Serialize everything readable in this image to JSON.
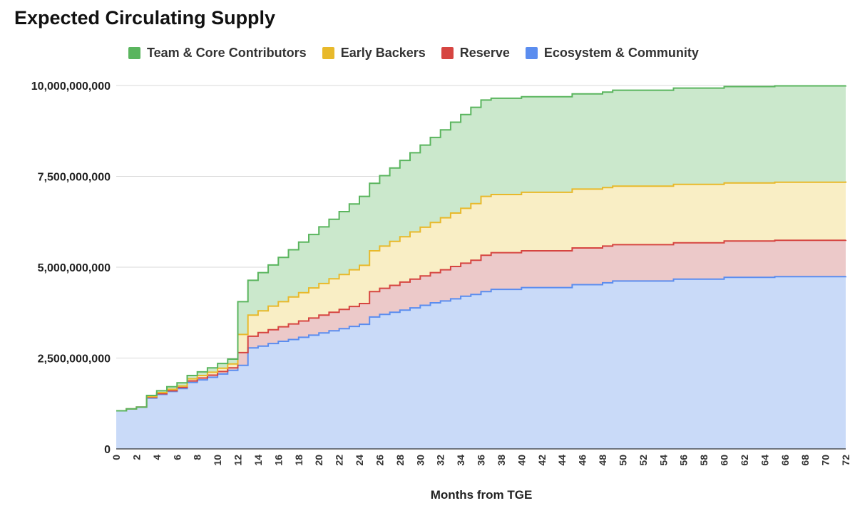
{
  "chart_data": {
    "type": "area",
    "stacked": true,
    "step": true,
    "title": "Expected Circulating Supply",
    "xlabel": "Months from TGE",
    "ylabel": "",
    "ylim": [
      0,
      10000000000
    ],
    "xlim": [
      0,
      72
    ],
    "yticks": [
      0,
      2500000000,
      5000000000,
      7500000000,
      10000000000
    ],
    "ytick_labels": [
      "0",
      "2,500,000,000",
      "5,000,000,000",
      "7,500,000,000",
      "10,000,000,000"
    ],
    "xticks": [
      0,
      2,
      4,
      6,
      8,
      10,
      12,
      14,
      16,
      18,
      20,
      22,
      24,
      26,
      28,
      30,
      32,
      34,
      36,
      38,
      40,
      42,
      44,
      46,
      48,
      50,
      52,
      54,
      56,
      58,
      60,
      62,
      64,
      66,
      68,
      70,
      72
    ],
    "xtick_labels": [
      "0",
      "2",
      "4",
      "6",
      "8",
      "10",
      "12",
      "14",
      "16",
      "18",
      "20",
      "22",
      "24",
      "26",
      "28",
      "30",
      "32",
      "34",
      "36",
      "38",
      "40",
      "42",
      "44",
      "46",
      "48",
      "50",
      "52",
      "54",
      "56",
      "58",
      "60",
      "62",
      "64",
      "66",
      "68",
      "70",
      "72"
    ],
    "grid": true,
    "legend_position": "top",
    "series": [
      {
        "name": "Ecosystem & Community",
        "color": "#5b8def",
        "fill": "#c9daf8",
        "cumulative_points": [
          [
            0,
            1050000000
          ],
          [
            1,
            1100000000
          ],
          [
            2,
            1150000000
          ],
          [
            3,
            1400000000
          ],
          [
            4,
            1500000000
          ],
          [
            5,
            1580000000
          ],
          [
            6,
            1660000000
          ],
          [
            7,
            1830000000
          ],
          [
            8,
            1900000000
          ],
          [
            9,
            1970000000
          ],
          [
            10,
            2060000000
          ],
          [
            11,
            2160000000
          ],
          [
            12,
            2300000000
          ],
          [
            13,
            2780000000
          ],
          [
            14,
            2830000000
          ],
          [
            15,
            2900000000
          ],
          [
            16,
            2960000000
          ],
          [
            17,
            3010000000
          ],
          [
            18,
            3070000000
          ],
          [
            19,
            3130000000
          ],
          [
            20,
            3190000000
          ],
          [
            21,
            3250000000
          ],
          [
            22,
            3310000000
          ],
          [
            23,
            3370000000
          ],
          [
            24,
            3430000000
          ],
          [
            25,
            3630000000
          ],
          [
            26,
            3700000000
          ],
          [
            27,
            3760000000
          ],
          [
            28,
            3820000000
          ],
          [
            29,
            3880000000
          ],
          [
            30,
            3950000000
          ],
          [
            31,
            4020000000
          ],
          [
            32,
            4070000000
          ],
          [
            33,
            4130000000
          ],
          [
            34,
            4200000000
          ],
          [
            35,
            4250000000
          ],
          [
            36,
            4330000000
          ],
          [
            37,
            4390000000
          ],
          [
            40,
            4440000000
          ],
          [
            45,
            4520000000
          ],
          [
            48,
            4570000000
          ],
          [
            49,
            4620000000
          ],
          [
            55,
            4670000000
          ],
          [
            60,
            4720000000
          ],
          [
            65,
            4740000000
          ],
          [
            72,
            4750000000
          ]
        ]
      },
      {
        "name": "Reserve",
        "color": "#d64541",
        "fill": "#ecc9c9",
        "cumulative_points": [
          [
            0,
            1050000000
          ],
          [
            1,
            1100000000
          ],
          [
            2,
            1150000000
          ],
          [
            3,
            1420000000
          ],
          [
            4,
            1520000000
          ],
          [
            5,
            1600000000
          ],
          [
            6,
            1690000000
          ],
          [
            7,
            1870000000
          ],
          [
            8,
            1950000000
          ],
          [
            9,
            2030000000
          ],
          [
            10,
            2130000000
          ],
          [
            11,
            2230000000
          ],
          [
            12,
            2650000000
          ],
          [
            13,
            3100000000
          ],
          [
            14,
            3200000000
          ],
          [
            15,
            3280000000
          ],
          [
            16,
            3360000000
          ],
          [
            17,
            3440000000
          ],
          [
            18,
            3520000000
          ],
          [
            19,
            3600000000
          ],
          [
            20,
            3680000000
          ],
          [
            21,
            3760000000
          ],
          [
            22,
            3840000000
          ],
          [
            23,
            3920000000
          ],
          [
            24,
            4000000000
          ],
          [
            25,
            4330000000
          ],
          [
            26,
            4420000000
          ],
          [
            27,
            4500000000
          ],
          [
            28,
            4590000000
          ],
          [
            29,
            4670000000
          ],
          [
            30,
            4760000000
          ],
          [
            31,
            4850000000
          ],
          [
            32,
            4930000000
          ],
          [
            33,
            5020000000
          ],
          [
            34,
            5110000000
          ],
          [
            35,
            5190000000
          ],
          [
            36,
            5330000000
          ],
          [
            37,
            5400000000
          ],
          [
            40,
            5450000000
          ],
          [
            45,
            5530000000
          ],
          [
            48,
            5580000000
          ],
          [
            49,
            5620000000
          ],
          [
            55,
            5670000000
          ],
          [
            60,
            5720000000
          ],
          [
            65,
            5740000000
          ],
          [
            72,
            5750000000
          ]
        ]
      },
      {
        "name": "Early Backers",
        "color": "#e8b92b",
        "fill": "#f9eec5",
        "cumulative_points": [
          [
            0,
            1050000000
          ],
          [
            1,
            1100000000
          ],
          [
            2,
            1150000000
          ],
          [
            3,
            1440000000
          ],
          [
            4,
            1550000000
          ],
          [
            5,
            1640000000
          ],
          [
            6,
            1730000000
          ],
          [
            7,
            1930000000
          ],
          [
            8,
            2020000000
          ],
          [
            9,
            2110000000
          ],
          [
            10,
            2220000000
          ],
          [
            11,
            2340000000
          ],
          [
            12,
            3150000000
          ],
          [
            13,
            3680000000
          ],
          [
            14,
            3800000000
          ],
          [
            15,
            3930000000
          ],
          [
            16,
            4050000000
          ],
          [
            17,
            4180000000
          ],
          [
            18,
            4300000000
          ],
          [
            19,
            4430000000
          ],
          [
            20,
            4550000000
          ],
          [
            21,
            4680000000
          ],
          [
            22,
            4800000000
          ],
          [
            23,
            4930000000
          ],
          [
            24,
            5050000000
          ],
          [
            25,
            5450000000
          ],
          [
            26,
            5580000000
          ],
          [
            27,
            5710000000
          ],
          [
            28,
            5840000000
          ],
          [
            29,
            5970000000
          ],
          [
            30,
            6100000000
          ],
          [
            31,
            6230000000
          ],
          [
            32,
            6360000000
          ],
          [
            33,
            6490000000
          ],
          [
            34,
            6620000000
          ],
          [
            35,
            6750000000
          ],
          [
            36,
            6950000000
          ],
          [
            37,
            7000000000
          ],
          [
            40,
            7060000000
          ],
          [
            45,
            7150000000
          ],
          [
            48,
            7190000000
          ],
          [
            49,
            7230000000
          ],
          [
            55,
            7280000000
          ],
          [
            60,
            7320000000
          ],
          [
            65,
            7340000000
          ],
          [
            72,
            7360000000
          ]
        ]
      },
      {
        "name": "Team & Core Contributors",
        "color": "#5ab55e",
        "fill": "#cbe8cc",
        "cumulative_points": [
          [
            0,
            1050000000
          ],
          [
            1,
            1100000000
          ],
          [
            2,
            1150000000
          ],
          [
            3,
            1470000000
          ],
          [
            4,
            1600000000
          ],
          [
            5,
            1710000000
          ],
          [
            6,
            1820000000
          ],
          [
            7,
            2020000000
          ],
          [
            8,
            2120000000
          ],
          [
            9,
            2230000000
          ],
          [
            10,
            2350000000
          ],
          [
            11,
            2470000000
          ],
          [
            12,
            4050000000
          ],
          [
            13,
            4640000000
          ],
          [
            14,
            4850000000
          ],
          [
            15,
            5060000000
          ],
          [
            16,
            5270000000
          ],
          [
            17,
            5480000000
          ],
          [
            18,
            5690000000
          ],
          [
            19,
            5900000000
          ],
          [
            20,
            6110000000
          ],
          [
            21,
            6320000000
          ],
          [
            22,
            6530000000
          ],
          [
            23,
            6740000000
          ],
          [
            24,
            6950000000
          ],
          [
            25,
            7310000000
          ],
          [
            26,
            7520000000
          ],
          [
            27,
            7730000000
          ],
          [
            28,
            7940000000
          ],
          [
            29,
            8150000000
          ],
          [
            30,
            8360000000
          ],
          [
            31,
            8570000000
          ],
          [
            32,
            8780000000
          ],
          [
            33,
            8990000000
          ],
          [
            34,
            9200000000
          ],
          [
            35,
            9400000000
          ],
          [
            36,
            9600000000
          ],
          [
            37,
            9650000000
          ],
          [
            40,
            9690000000
          ],
          [
            45,
            9770000000
          ],
          [
            48,
            9820000000
          ],
          [
            49,
            9870000000
          ],
          [
            55,
            9930000000
          ],
          [
            60,
            9970000000
          ],
          [
            65,
            9990000000
          ],
          [
            72,
            10000000000
          ]
        ]
      }
    ]
  }
}
